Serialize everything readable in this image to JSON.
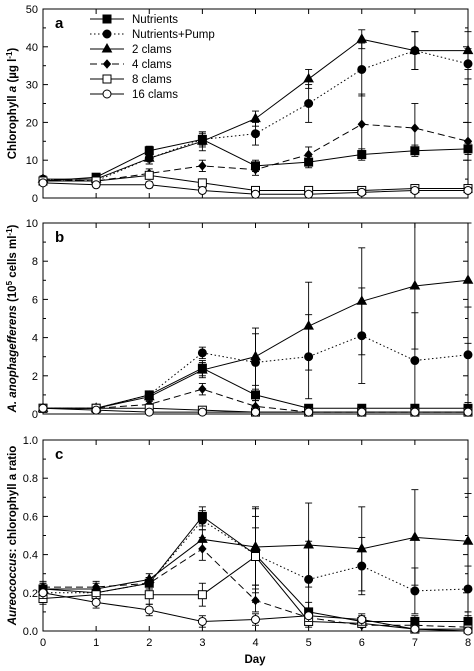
{
  "chart_data": {
    "type": "line",
    "x": [
      0,
      1,
      2,
      3,
      4,
      5,
      6,
      7,
      8
    ],
    "xlabel": "Day",
    "xlim": [
      0,
      8
    ],
    "xticks": [
      "0",
      "1",
      "2",
      "3",
      "4",
      "5",
      "6",
      "7",
      "8"
    ],
    "legend": [
      "Nutrients",
      "Nutrients+Pump",
      "2 clams",
      "4 clams",
      "8 clams",
      "16 clams"
    ],
    "legend_position": "top-left of panel a",
    "panels": [
      {
        "letter": "a",
        "ylabel_pre": "Chlorophyll ",
        "ylabel_italic": "a",
        "ylabel_post": " (µg l",
        "ylabel_sup": "-1",
        "ylabel_end": ")",
        "ylim": [
          0,
          50
        ],
        "yticks": [
          "0",
          "10",
          "20",
          "30",
          "40",
          "50"
        ],
        "series": [
          {
            "name": "Nutrients",
            "values": [
              4.5,
              5.5,
              12.5,
              15.5,
              8.5,
              9.5,
              11.5,
              12.5,
              13
            ],
            "err": [
              0.8,
              0.8,
              1.2,
              1.5,
              1.5,
              1.5,
              1.5,
              1.5,
              1.5
            ]
          },
          {
            "name": "Nutrients+Pump",
            "values": [
              5,
              4.5,
              10.5,
              15.5,
              17,
              25,
              34,
              39,
              35.5
            ],
            "err": [
              0.8,
              0.8,
              1.5,
              2,
              3,
              5,
              7,
              5,
              4
            ]
          },
          {
            "name": "2 clams",
            "values": [
              5,
              5,
              10.5,
              15,
              21,
              31.5,
              42,
              39,
              39
            ],
            "err": [
              0.8,
              0.8,
              1.5,
              2.5,
              2,
              2.5,
              2.5,
              5,
              5
            ]
          },
          {
            "name": "4 clams",
            "values": [
              5,
              4.5,
              6.5,
              8.5,
              7.5,
              11.5,
              19.5,
              18.5,
              15
            ],
            "err": [
              0.8,
              0.8,
              1.2,
              1.5,
              1.5,
              2,
              8,
              6.5,
              5
            ]
          },
          {
            "name": "8 clams",
            "values": [
              4.5,
              4.5,
              6,
              4,
              2,
              2,
              2,
              2.5,
              2.5
            ],
            "err": [
              0.6,
              0.6,
              1,
              1,
              0.6,
              0.6,
              0.6,
              0.6,
              0.6
            ]
          },
          {
            "name": "16 clams",
            "values": [
              4,
              3.5,
              3.5,
              2,
              1,
              1,
              1.5,
              2,
              2
            ],
            "err": [
              0.6,
              0.6,
              0.8,
              0.6,
              0.5,
              0.5,
              0.5,
              0.5,
              0.5
            ]
          }
        ]
      },
      {
        "letter": "b",
        "ylabel_italic": "A. anophagefferens",
        "ylabel_mid": " (10",
        "ylabel_sup": "5",
        "ylabel_post": " cells ml",
        "ylabel_sup2": "-1",
        "ylabel_end": ")",
        "ylim": [
          0,
          10
        ],
        "yticks": [
          "0",
          "2",
          "4",
          "6",
          "8",
          "10"
        ],
        "series": [
          {
            "name": "Nutrients",
            "values": [
              0.3,
              0.3,
              1.0,
              2.4,
              1.0,
              0.3,
              0.3,
              0.3,
              0.3
            ],
            "err": [
              0.05,
              0.05,
              0.2,
              0.4,
              0.3,
              0.1,
              0.1,
              0.1,
              0.1
            ]
          },
          {
            "name": "Nutrients+Pump",
            "values": [
              0.3,
              0.3,
              1.0,
              3.2,
              2.7,
              3.0,
              4.1,
              2.8,
              3.1
            ],
            "err": [
              0.05,
              0.05,
              0.2,
              0.3,
              1.5,
              2.2,
              2.5,
              2.5,
              2.5
            ]
          },
          {
            "name": "2 clams",
            "values": [
              0.3,
              0.3,
              0.9,
              2.3,
              3.0,
              4.6,
              5.9,
              6.7,
              7.0
            ],
            "err": [
              0.05,
              0.05,
              0.2,
              0.4,
              1.5,
              2.3,
              2.8,
              3.3,
              3.3
            ]
          },
          {
            "name": "4 clams",
            "values": [
              0.3,
              0.3,
              0.5,
              1.3,
              0.4,
              0.1,
              0.1,
              0.1,
              0.1
            ],
            "err": [
              0.05,
              0.05,
              0.15,
              0.3,
              0.3,
              0.05,
              0.05,
              0.05,
              0.05
            ]
          },
          {
            "name": "8 clams",
            "values": [
              0.3,
              0.3,
              0.3,
              0.2,
              0.1,
              0.1,
              0.1,
              0.1,
              0.1
            ],
            "err": [
              0.05,
              0.05,
              0.1,
              0.1,
              0.05,
              0.05,
              0.05,
              0.05,
              0.05
            ]
          },
          {
            "name": "16 clams",
            "values": [
              0.3,
              0.2,
              0.1,
              0.1,
              0.1,
              0.1,
              0.1,
              0.1,
              0.1
            ],
            "err": [
              0.05,
              0.05,
              0.05,
              0.05,
              0.05,
              0.05,
              0.05,
              0.05,
              0.05
            ]
          }
        ]
      },
      {
        "letter": "c",
        "ylabel_italic": "Aureococcus",
        "ylabel_post": ": chlorophyll a ratio",
        "ylim": [
          0,
          1.0
        ],
        "yticks": [
          "0.0",
          "0.2",
          "0.4",
          "0.6",
          "0.8",
          "1.0"
        ],
        "series": [
          {
            "name": "Nutrients",
            "values": [
              0.22,
              0.2,
              0.25,
              0.6,
              0.4,
              0.1,
              0.05,
              0.05,
              0.05
            ],
            "err": [
              0.03,
              0.03,
              0.03,
              0.05,
              0.2,
              0.05,
              0.03,
              0.03,
              0.03
            ]
          },
          {
            "name": "Nutrients+Pump",
            "values": [
              0.2,
              0.2,
              0.25,
              0.58,
              0.4,
              0.27,
              0.34,
              0.21,
              0.22
            ],
            "err": [
              0.03,
              0.03,
              0.03,
              0.05,
              0.25,
              0.2,
              0.15,
              0.12,
              0.12
            ]
          },
          {
            "name": "2 clams",
            "values": [
              0.22,
              0.22,
              0.27,
              0.48,
              0.44,
              0.45,
              0.43,
              0.49,
              0.47
            ],
            "err": [
              0.03,
              0.03,
              0.03,
              0.05,
              0.2,
              0.22,
              0.22,
              0.25,
              0.25
            ]
          },
          {
            "name": "4 clams",
            "values": [
              0.23,
              0.23,
              0.25,
              0.43,
              0.16,
              0.07,
              0.03,
              0.03,
              0.02
            ],
            "err": [
              0.03,
              0.03,
              0.03,
              0.06,
              0.06,
              0.03,
              0.03,
              0.02,
              0.02
            ]
          },
          {
            "name": "8 clams",
            "values": [
              0.17,
              0.19,
              0.19,
              0.19,
              0.39,
              0.05,
              0.04,
              0.01,
              0.01
            ],
            "err": [
              0.03,
              0.03,
              0.05,
              0.06,
              0.15,
              0.03,
              0.02,
              0.02,
              0.02
            ]
          },
          {
            "name": "16 clams",
            "values": [
              0.2,
              0.15,
              0.11,
              0.05,
              0.06,
              0.08,
              0.06,
              0.01,
              0.0
            ],
            "err": [
              0.03,
              0.03,
              0.03,
              0.03,
              0.03,
              0.03,
              0.03,
              0.02,
              0.02
            ]
          }
        ]
      }
    ]
  }
}
